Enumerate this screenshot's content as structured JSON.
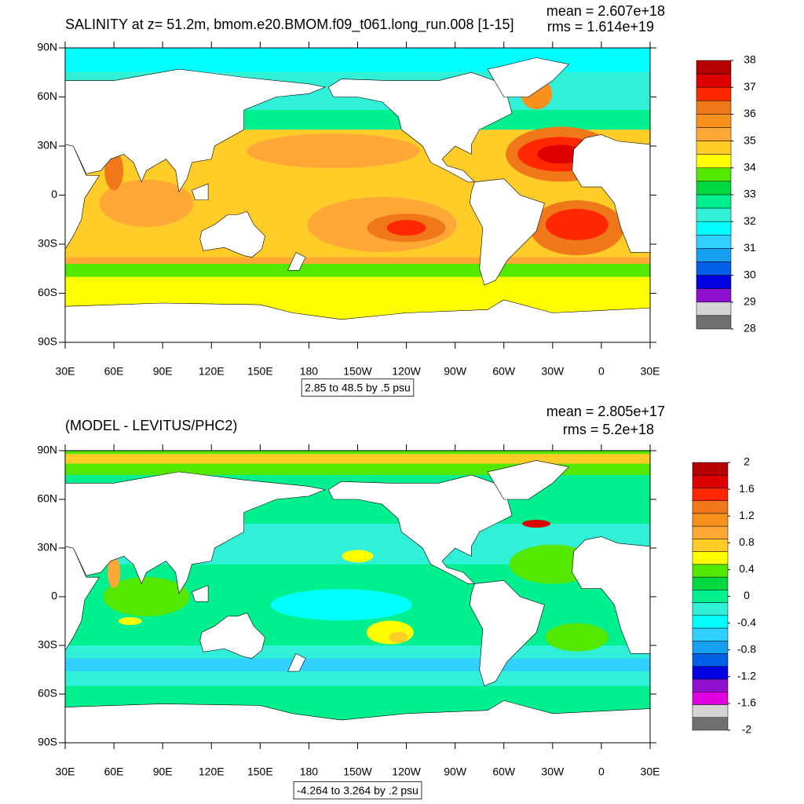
{
  "panels": [
    {
      "title": "SALINITY at z=  51.2m, bmom.e20.BMOM.f09_t061.long_run.008 [1-15]",
      "mean": "mean = 2.607e+18",
      "rms": "rms = 1.614e+19",
      "info": "2.85 to 48.5 by .5 psu",
      "lonlim": [
        30,
        390
      ],
      "latlim": [
        -90,
        90
      ],
      "xticks": [
        {
          "value": 30,
          "label": "30E"
        },
        {
          "value": 60,
          "label": "60E"
        },
        {
          "value": 90,
          "label": "90E"
        },
        {
          "value": 120,
          "label": "120E"
        },
        {
          "value": 150,
          "label": "150E"
        },
        {
          "value": 180,
          "label": "180"
        },
        {
          "value": 210,
          "label": "150W"
        },
        {
          "value": 240,
          "label": "120W"
        },
        {
          "value": 270,
          "label": "90W"
        },
        {
          "value": 300,
          "label": "60W"
        },
        {
          "value": 330,
          "label": "30W"
        },
        {
          "value": 360,
          "label": "0"
        },
        {
          "value": 390,
          "label": "30E"
        }
      ],
      "yticks": [
        {
          "value": 90,
          "label": "90N"
        },
        {
          "value": 60,
          "label": "60N"
        },
        {
          "value": 30,
          "label": "30N"
        },
        {
          "value": 0,
          "label": "0"
        },
        {
          "value": -30,
          "label": "30S"
        },
        {
          "value": -60,
          "label": "60S"
        },
        {
          "value": -90,
          "label": "90S"
        }
      ],
      "colorbar_labels": [
        38,
        37,
        36,
        35,
        34,
        33,
        32,
        31,
        30,
        29,
        28
      ],
      "colors": [
        "#b40000",
        "#dc0000",
        "#ff2800",
        "#f07818",
        "#f8901e",
        "#ffa838",
        "#ffcc28",
        "#ffff00",
        "#54e800",
        "#00d840",
        "#00f090",
        "#30f0d8",
        "#00ffff",
        "#30d0ff",
        "#18a0f0",
        "#0060e8",
        "#0000e0",
        "#9010d0",
        "#d4d4d4",
        "#707070"
      ]
    },
    {
      "title": "(MODEL - LEVITUS/PHC2)",
      "mean": "mean = 2.805e+17",
      "rms": "rms = 5.2e+18",
      "info": "-4.264 to 3.264 by .2 psu",
      "lonlim": [
        30,
        390
      ],
      "latlim": [
        -90,
        90
      ],
      "xticks": [
        {
          "value": 30,
          "label": "30E"
        },
        {
          "value": 60,
          "label": "60E"
        },
        {
          "value": 90,
          "label": "90E"
        },
        {
          "value": 120,
          "label": "120E"
        },
        {
          "value": 150,
          "label": "150E"
        },
        {
          "value": 180,
          "label": "180"
        },
        {
          "value": 210,
          "label": "150W"
        },
        {
          "value": 240,
          "label": "120W"
        },
        {
          "value": 270,
          "label": "90W"
        },
        {
          "value": 300,
          "label": "60W"
        },
        {
          "value": 330,
          "label": "30W"
        },
        {
          "value": 360,
          "label": "0"
        },
        {
          "value": 390,
          "label": "30E"
        }
      ],
      "yticks": [
        {
          "value": 90,
          "label": "90N"
        },
        {
          "value": 60,
          "label": "60N"
        },
        {
          "value": 30,
          "label": "30N"
        },
        {
          "value": 0,
          "label": "0"
        },
        {
          "value": -30,
          "label": "30S"
        },
        {
          "value": -60,
          "label": "60S"
        },
        {
          "value": -90,
          "label": "90S"
        }
      ],
      "colorbar_labels": [
        2,
        1.6,
        1.2,
        0.8,
        0.4,
        0,
        -0.4,
        -0.8,
        -1.2,
        -1.6,
        -2
      ],
      "colors": [
        "#b40000",
        "#dc0000",
        "#ff2800",
        "#f07818",
        "#f8901e",
        "#ffa838",
        "#ffcc28",
        "#ffff00",
        "#54e800",
        "#00d840",
        "#00f090",
        "#30f0d8",
        "#00ffff",
        "#30d0ff",
        "#18a0f0",
        "#0060e8",
        "#0000e0",
        "#9010d0",
        "#e000e0",
        "#d4d4d4",
        "#707070"
      ]
    }
  ]
}
